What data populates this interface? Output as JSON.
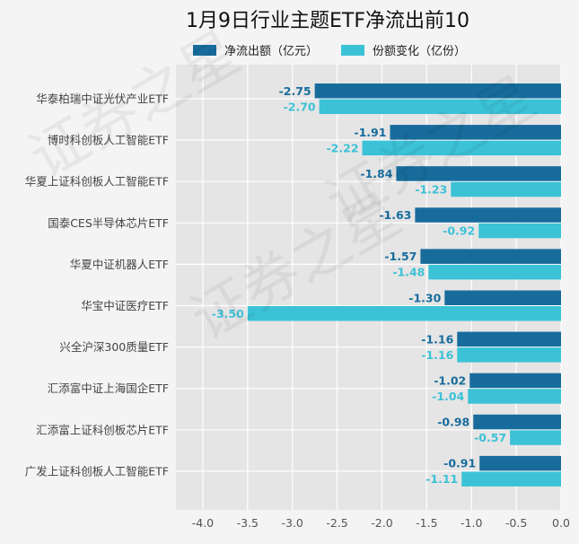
{
  "chart_data": {
    "type": "bar",
    "orientation": "horizontal",
    "title": "1月9日行业主题ETF净流出前10",
    "categories": [
      "华泰柏瑞中证光伏产业ETF",
      "博时科创板人工智能ETF",
      "华夏上证科创板人工智能ETF",
      "国泰CES半导体芯片ETF",
      "华夏中证机器人ETF",
      "华宝中证医疗ETF",
      "兴全沪深300质量ETF",
      "汇添富中证上海国企ETF",
      "汇添富上证科创板芯片ETF",
      "广发上证科创板人工智能ETF"
    ],
    "series": [
      {
        "name": "净流出额（亿元）",
        "color": "#176c9c",
        "values": [
          -2.75,
          -1.91,
          -1.84,
          -1.63,
          -1.57,
          -1.3,
          -1.16,
          -1.02,
          -0.98,
          -0.91
        ],
        "labels": [
          "-2.75",
          "-1.91",
          "-1.84",
          "-1.63",
          "-1.57",
          "-1.30",
          "-1.16",
          "-1.02",
          "-0.98",
          "-0.91"
        ]
      },
      {
        "name": "份额变化（亿份）",
        "color": "#3cc2d6",
        "values": [
          -2.7,
          -2.22,
          -1.23,
          -0.92,
          -1.48,
          -3.5,
          -1.16,
          -1.04,
          -0.57,
          -1.11
        ],
        "labels": [
          "-2.70",
          "-2.22",
          "-1.23",
          "-0.92",
          "-1.48",
          "-3.50",
          "-1.16",
          "-1.04",
          "-0.57",
          "-1.11"
        ]
      }
    ],
    "xlim": [
      -4.3,
      0
    ],
    "xticks": [
      -4.0,
      -3.5,
      -3.0,
      -2.5,
      -2.0,
      -1.5,
      -1.0,
      -0.5,
      0.0
    ],
    "xtick_labels": [
      "-4.0",
      "-3.5",
      "-3.0",
      "-2.5",
      "-2.0",
      "-1.5",
      "-1.0",
      "-0.5",
      "0.0"
    ],
    "grid": true,
    "legend_position": "top",
    "xlabel": "",
    "ylabel": ""
  },
  "watermark": {
    "lines": [
      "证券之星",
      "证券之星",
      "证券之星"
    ]
  }
}
